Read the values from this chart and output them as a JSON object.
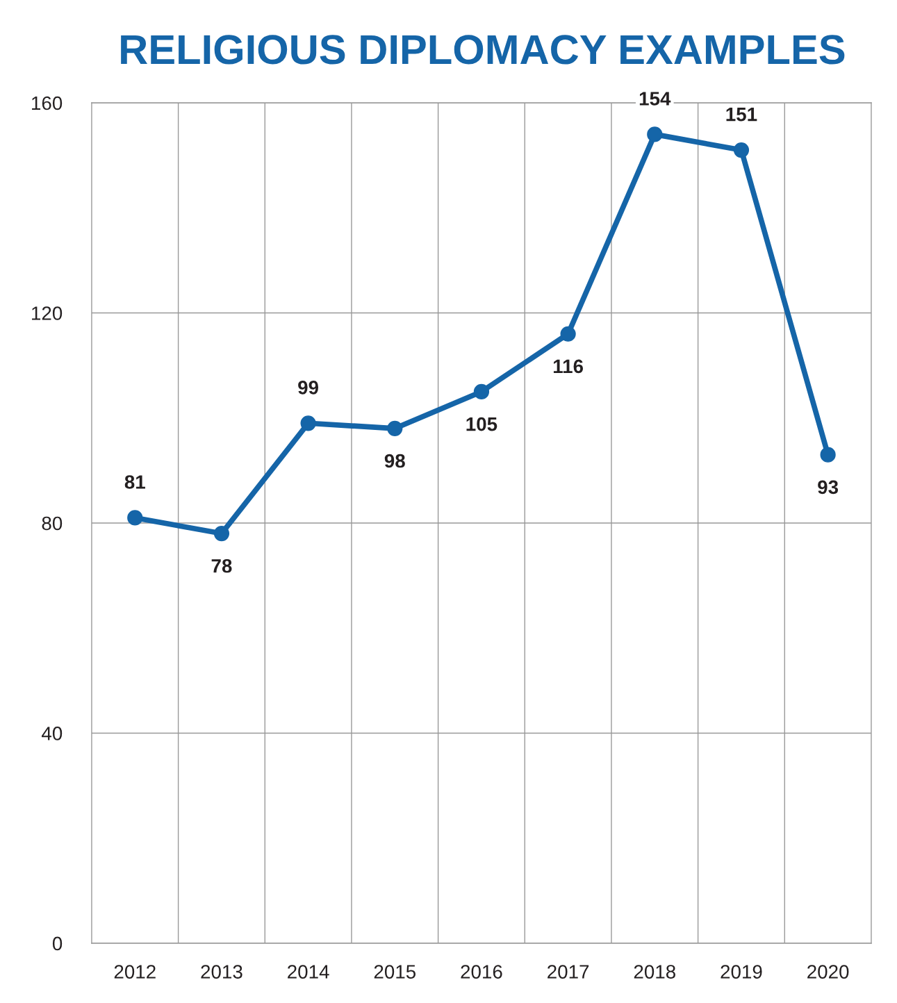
{
  "chart_data": {
    "type": "line",
    "title": "RELIGIOUS DIPLOMACY EXAMPLES",
    "categories": [
      "2012",
      "2013",
      "2014",
      "2015",
      "2016",
      "2017",
      "2018",
      "2019",
      "2020"
    ],
    "series": [
      {
        "color": "#1565a8",
        "values": [
          81,
          78,
          99,
          98,
          105,
          116,
          154,
          151,
          93
        ]
      }
    ],
    "ylim": [
      0,
      160
    ],
    "yticks": [
      0,
      40,
      80,
      120,
      160
    ],
    "grid": true,
    "marker": "circle",
    "line_style": "solid",
    "data_labels": true
  }
}
